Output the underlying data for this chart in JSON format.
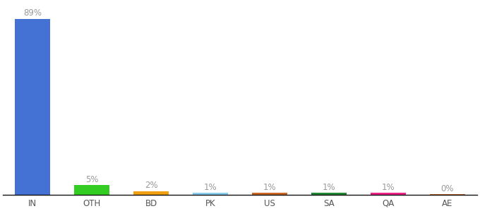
{
  "categories": [
    "IN",
    "OTH",
    "BD",
    "PK",
    "US",
    "SA",
    "QA",
    "AE"
  ],
  "values": [
    89,
    5,
    2,
    1,
    1,
    1,
    1,
    0.3
  ],
  "labels": [
    "89%",
    "5%",
    "2%",
    "1%",
    "1%",
    "1%",
    "1%",
    "0%"
  ],
  "bar_colors": [
    "#4472d4",
    "#33cc22",
    "#f0a010",
    "#88ccee",
    "#cc6622",
    "#228833",
    "#ee2288",
    "#cc6622"
  ],
  "background_color": "#ffffff",
  "label_fontsize": 8.5,
  "tick_fontsize": 8.5,
  "label_color": "#999999"
}
